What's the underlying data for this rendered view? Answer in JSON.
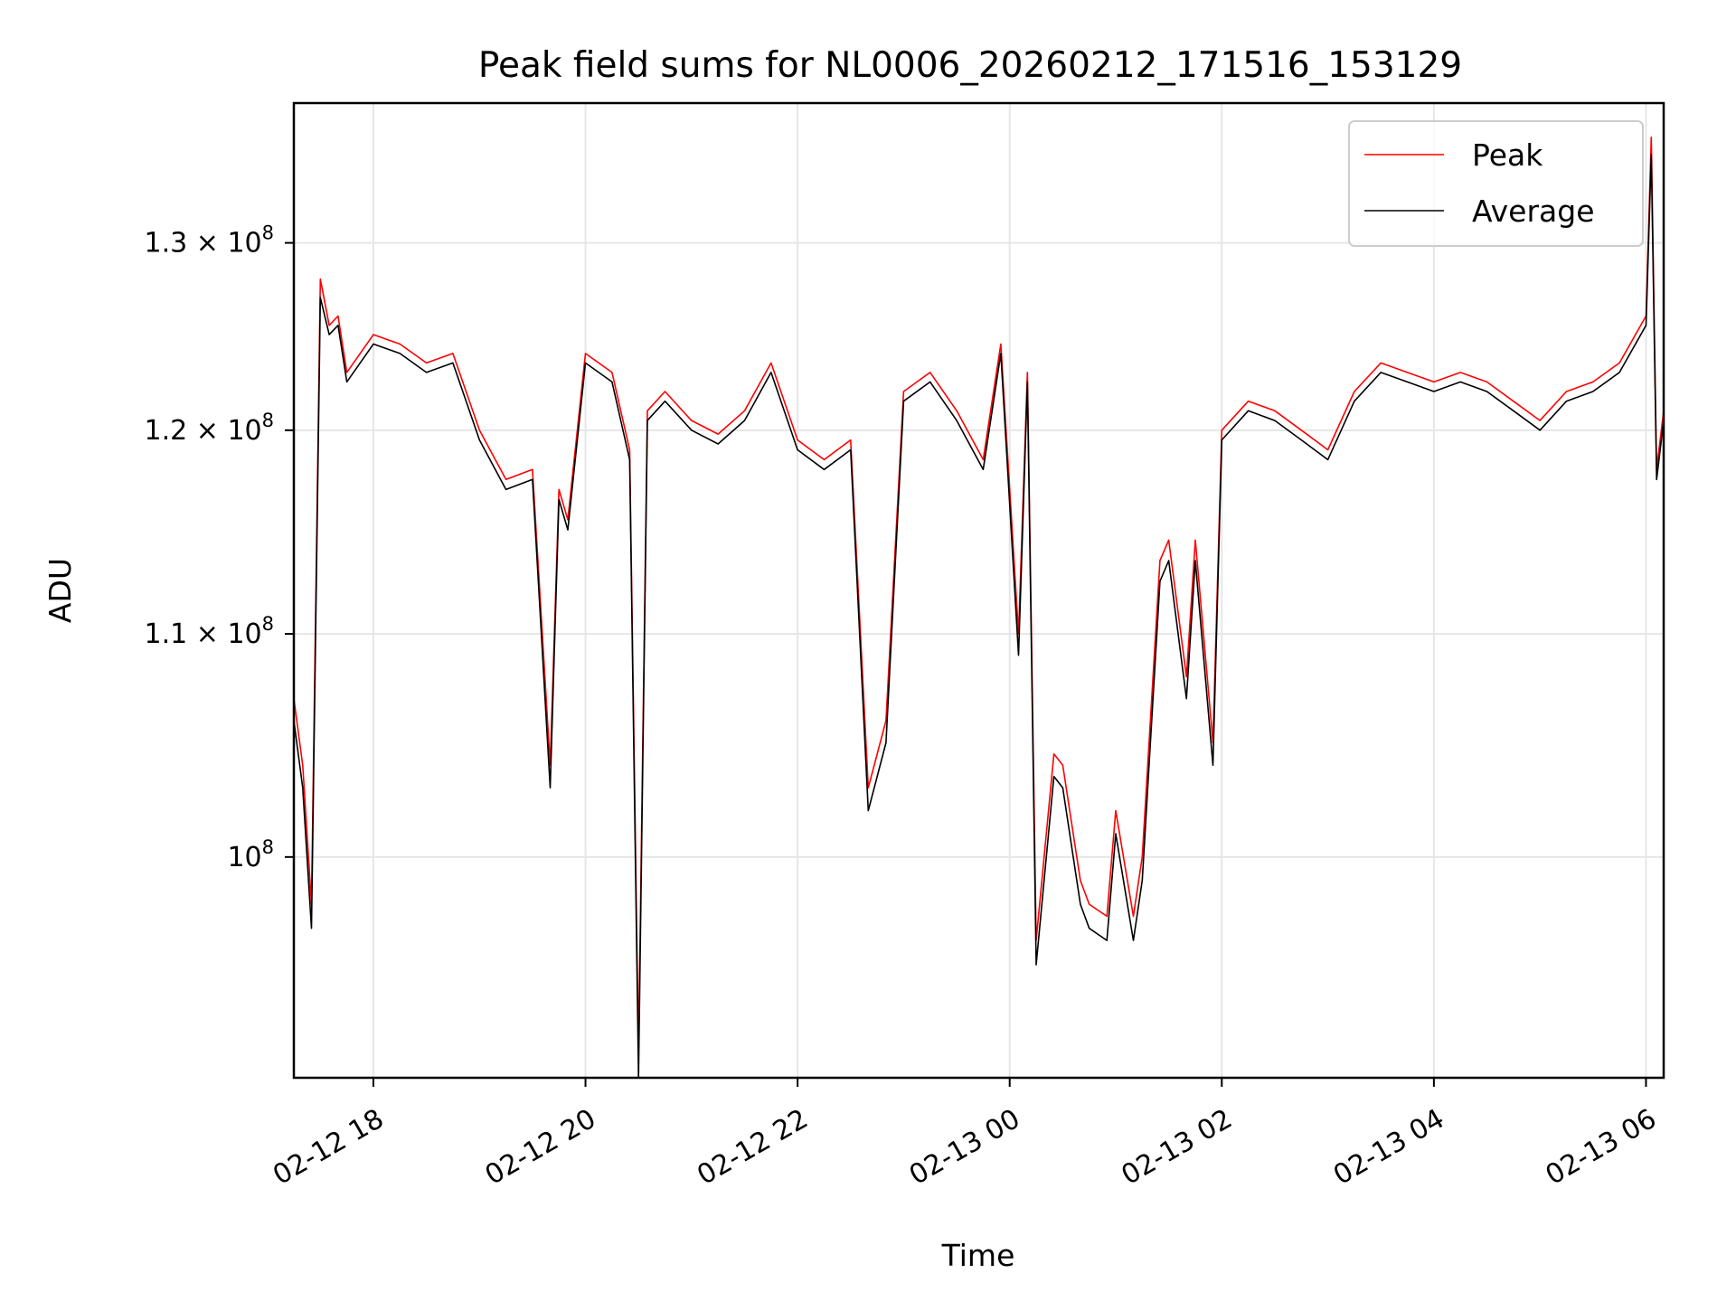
{
  "chart_data": {
    "type": "line",
    "title": "Peak field sums for NL0006_20260212_171516_153129",
    "xlabel": "Time",
    "ylabel": "ADU",
    "yscale": "log",
    "grid": true,
    "legend_position": "top-right",
    "xlim": [
      "02-12 17:15",
      "02-13 06:10"
    ],
    "ylim": [
      91000000,
      138000000
    ],
    "x_ticks": [
      "02-12 18",
      "02-12 20",
      "02-12 22",
      "02-13 00",
      "02-13 02",
      "02-13 04",
      "02-13 06"
    ],
    "y_ticks": [
      {
        "value": 100000000,
        "mantissa": "",
        "exponent": "8",
        "base": "10"
      },
      {
        "value": 110000000,
        "mantissa": "1.1",
        "exponent": "8",
        "base": "10"
      },
      {
        "value": 120000000,
        "mantissa": "1.2",
        "exponent": "8",
        "base": "10"
      },
      {
        "value": 130000000,
        "mantissa": "1.3",
        "exponent": "8",
        "base": "10"
      }
    ],
    "series": [
      {
        "name": "Peak",
        "color": "#ff0000",
        "x": [
          "02-12 17:15",
          "02-12 17:20",
          "02-12 17:25",
          "02-12 17:30",
          "02-12 17:35",
          "02-12 17:40",
          "02-12 17:45",
          "02-12 18:00",
          "02-12 18:15",
          "02-12 18:30",
          "02-12 18:45",
          "02-12 19:00",
          "02-12 19:15",
          "02-12 19:30",
          "02-12 19:40",
          "02-12 19:45",
          "02-12 19:50",
          "02-12 20:00",
          "02-12 20:15",
          "02-12 20:25",
          "02-12 20:30",
          "02-12 20:35",
          "02-12 20:45",
          "02-12 21:00",
          "02-12 21:15",
          "02-12 21:30",
          "02-12 21:45",
          "02-12 22:00",
          "02-12 22:15",
          "02-12 22:30",
          "02-12 22:40",
          "02-12 22:50",
          "02-12 23:00",
          "02-12 23:15",
          "02-12 23:30",
          "02-12 23:45",
          "02-12 23:55",
          "02-13 00:05",
          "02-13 00:10",
          "02-13 00:15",
          "02-13 00:25",
          "02-13 00:30",
          "02-13 00:40",
          "02-13 00:45",
          "02-13 00:55",
          "02-13 01:00",
          "02-13 01:10",
          "02-13 01:15",
          "02-13 01:25",
          "02-13 01:30",
          "02-13 01:40",
          "02-13 01:45",
          "02-13 01:55",
          "02-13 02:00",
          "02-13 02:15",
          "02-13 02:30",
          "02-13 02:45",
          "02-13 03:00",
          "02-13 03:15",
          "02-13 03:30",
          "02-13 03:45",
          "02-13 04:00",
          "02-13 04:15",
          "02-13 04:30",
          "02-13 04:45",
          "02-13 05:00",
          "02-13 05:15",
          "02-13 05:30",
          "02-13 05:45",
          "02-13 06:00",
          "02-13 06:03",
          "02-13 06:06",
          "02-13 06:10"
        ],
        "values": [
          107000000,
          104000000,
          98000000,
          128000000,
          125500000,
          126000000,
          123000000,
          125000000,
          124500000,
          123500000,
          124000000,
          120000000,
          117500000,
          118000000,
          104000000,
          117000000,
          115500000,
          124000000,
          123000000,
          119000000,
          92000000,
          121000000,
          122000000,
          120500000,
          119800000,
          121000000,
          123500000,
          119500000,
          118500000,
          119500000,
          103000000,
          106000000,
          122000000,
          123000000,
          121000000,
          118500000,
          124500000,
          110000000,
          123000000,
          96500000,
          104500000,
          104000000,
          99000000,
          98000000,
          97500000,
          102000000,
          97500000,
          100000000,
          113500000,
          114500000,
          108000000,
          114500000,
          105000000,
          120000000,
          121500000,
          121000000,
          120000000,
          119000000,
          122000000,
          123500000,
          123000000,
          122500000,
          123000000,
          122500000,
          121500000,
          120500000,
          122000000,
          122500000,
          123500000,
          126000000,
          136000000,
          118000000,
          121000000
        ]
      },
      {
        "name": "Average",
        "color": "#000000",
        "x": [
          "02-12 17:15",
          "02-12 17:20",
          "02-12 17:25",
          "02-12 17:30",
          "02-12 17:35",
          "02-12 17:40",
          "02-12 17:45",
          "02-12 18:00",
          "02-12 18:15",
          "02-12 18:30",
          "02-12 18:45",
          "02-12 19:00",
          "02-12 19:15",
          "02-12 19:30",
          "02-12 19:40",
          "02-12 19:45",
          "02-12 19:50",
          "02-12 20:00",
          "02-12 20:15",
          "02-12 20:25",
          "02-12 20:30",
          "02-12 20:35",
          "02-12 20:45",
          "02-12 21:00",
          "02-12 21:15",
          "02-12 21:30",
          "02-12 21:45",
          "02-12 22:00",
          "02-12 22:15",
          "02-12 22:30",
          "02-12 22:40",
          "02-12 22:50",
          "02-12 23:00",
          "02-12 23:15",
          "02-12 23:30",
          "02-12 23:45",
          "02-12 23:55",
          "02-13 00:05",
          "02-13 00:10",
          "02-13 00:15",
          "02-13 00:25",
          "02-13 00:30",
          "02-13 00:40",
          "02-13 00:45",
          "02-13 00:55",
          "02-13 01:00",
          "02-13 01:10",
          "02-13 01:15",
          "02-13 01:25",
          "02-13 01:30",
          "02-13 01:40",
          "02-13 01:45",
          "02-13 01:55",
          "02-13 02:00",
          "02-13 02:15",
          "02-13 02:30",
          "02-13 02:45",
          "02-13 03:00",
          "02-13 03:15",
          "02-13 03:30",
          "02-13 03:45",
          "02-13 04:00",
          "02-13 04:15",
          "02-13 04:30",
          "02-13 04:45",
          "02-13 05:00",
          "02-13 05:15",
          "02-13 05:30",
          "02-13 05:45",
          "02-13 06:00",
          "02-13 06:03",
          "02-13 06:06",
          "02-13 06:10"
        ],
        "values": [
          106000000,
          103000000,
          97000000,
          127000000,
          125000000,
          125500000,
          122500000,
          124500000,
          124000000,
          123000000,
          123500000,
          119500000,
          117000000,
          117500000,
          103000000,
          116500000,
          115000000,
          123500000,
          122500000,
          118500000,
          91000000,
          120500000,
          121500000,
          120000000,
          119300000,
          120500000,
          123000000,
          119000000,
          118000000,
          119000000,
          102000000,
          105000000,
          121500000,
          122500000,
          120500000,
          118000000,
          124000000,
          109000000,
          122500000,
          95500000,
          103500000,
          103000000,
          98000000,
          97000000,
          96500000,
          101000000,
          96500000,
          99000000,
          112500000,
          113500000,
          107000000,
          113500000,
          104000000,
          119500000,
          121000000,
          120500000,
          119500000,
          118500000,
          121500000,
          123000000,
          122500000,
          122000000,
          122500000,
          122000000,
          121000000,
          120000000,
          121500000,
          122000000,
          123000000,
          125500000,
          135000000,
          117500000,
          120500000
        ]
      }
    ]
  }
}
